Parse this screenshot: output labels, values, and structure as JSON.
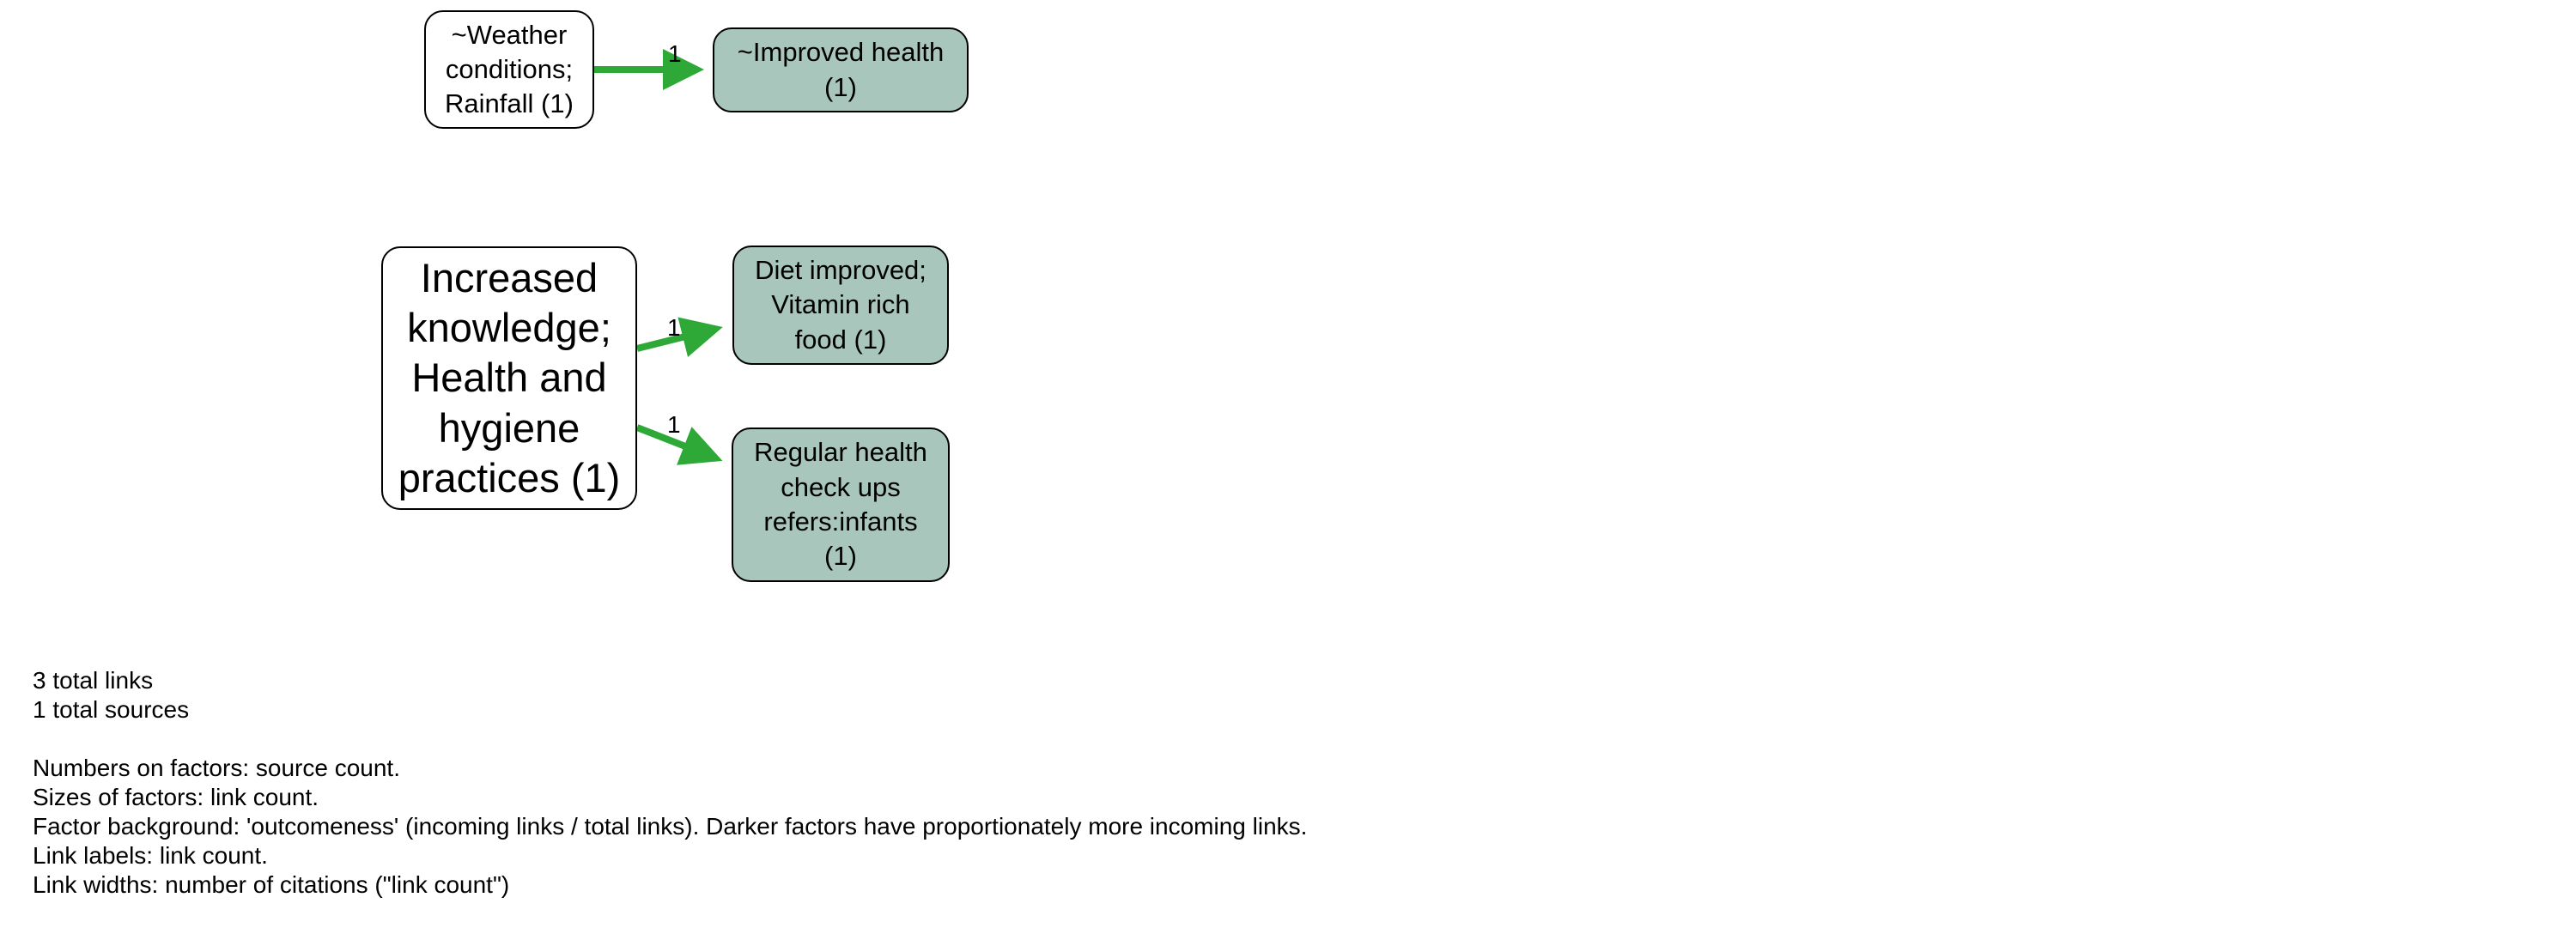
{
  "colors": {
    "link": "#2ea836",
    "outcome_fill": "#a8c6bb",
    "source_fill": "#ffffff",
    "border": "#000000"
  },
  "nodes": {
    "weather": "~Weather\nconditions;\nRainfall (1)",
    "improved_health": "~Improved health\n(1)",
    "knowledge": "Increased\nknowledge;\nHealth and\nhygiene\npractices (1)",
    "diet": "Diet improved;\nVitamin rich\nfood (1)",
    "checkups": "Regular health\ncheck ups\nrefers:infants\n(1)"
  },
  "links": [
    {
      "from": "~Weather conditions; Rainfall",
      "to": "~Improved health",
      "label": "1"
    },
    {
      "from": "Increased knowledge; Health and hygiene practices",
      "to": "Diet improved; Vitamin rich food",
      "label": "1"
    },
    {
      "from": "Increased knowledge; Health and hygiene practices",
      "to": "Regular health check ups refers:infants",
      "label": "1"
    }
  ],
  "legend": {
    "total_links": "3 total links",
    "total_sources": "1 total sources",
    "line1": "Numbers on factors: source count.",
    "line2": "Sizes of factors: link count.",
    "line3": "Factor background: 'outcomeness' (incoming links / total links). Darker factors have proportionately more incoming links.",
    "line4": "Link labels: link count.",
    "line5": "Link widths: number of citations (\"link count\")"
  }
}
